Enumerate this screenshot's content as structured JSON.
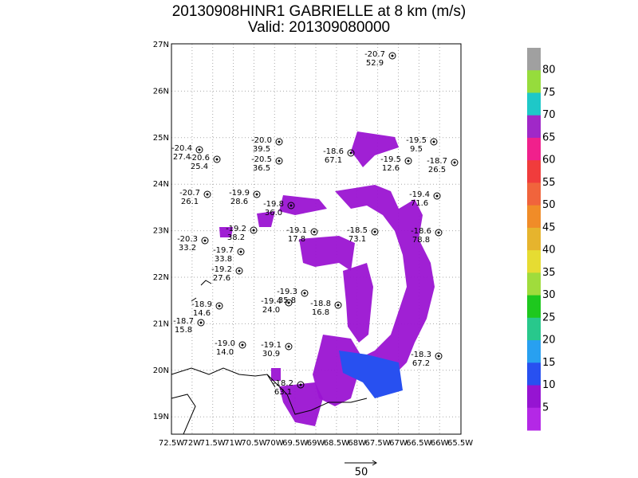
{
  "header": {
    "title": "20130908HINR1  GABRIELLE at 8 km (m/s)",
    "subtitle": "Valid: 201309080000"
  },
  "map": {
    "lat_labels": [
      "27N",
      "26N",
      "25N",
      "24N",
      "23N",
      "22N",
      "21N",
      "20N",
      "19N"
    ],
    "lon_labels": [
      "72.5W",
      "72W",
      "71.5W",
      "71W",
      "70.5W",
      "70W",
      "69.5W",
      "69W",
      "68.5W",
      "68W",
      "67.5W",
      "67W",
      "66.5W",
      "66W",
      "65.5W"
    ],
    "stations": [
      {
        "values": [
          "-20.7",
          "52.9"
        ]
      },
      {
        "values": [
          "-20.0",
          "39.5"
        ]
      },
      {
        "values": [
          "-20.5",
          "36.5"
        ]
      },
      {
        "values": [
          "-20.4",
          "27.4"
        ]
      },
      {
        "values": [
          "-20.6",
          "25.4"
        ]
      },
      {
        "values": [
          "-18.6",
          "67.1"
        ]
      },
      {
        "values": [
          "-19.5",
          "9.5"
        ]
      },
      {
        "values": [
          "-19.5",
          "12.6"
        ]
      },
      {
        "values": [
          "-18.7",
          "26.5"
        ]
      },
      {
        "values": [
          "-20.7",
          "26.1"
        ]
      },
      {
        "values": [
          "-19.9",
          "28.6"
        ]
      },
      {
        "values": [
          "-19.8",
          "36.0"
        ]
      },
      {
        "values": [
          "-19.4",
          "71.6"
        ]
      },
      {
        "values": [
          "-19.2",
          "38.2"
        ]
      },
      {
        "values": [
          "-19.1",
          "17.8"
        ]
      },
      {
        "values": [
          "-18.5",
          "73.1"
        ]
      },
      {
        "values": [
          "-18.6",
          "78.8"
        ]
      },
      {
        "values": [
          "-20.3",
          "33.2"
        ]
      },
      {
        "values": [
          "-19.7",
          "33.8"
        ]
      },
      {
        "values": [
          "-19.2",
          "27.6"
        ]
      },
      {
        "values": [
          "-18.9",
          "14.6"
        ]
      },
      {
        "values": [
          "-19.3",
          "35.8"
        ]
      },
      {
        "values": [
          "-19.4",
          "24.0"
        ]
      },
      {
        "values": [
          "-18.8",
          "16.8"
        ]
      },
      {
        "values": [
          "-18.7",
          "15.8"
        ]
      },
      {
        "values": [
          "-19.0",
          "14.0"
        ]
      },
      {
        "values": [
          "-18.3",
          "67.2"
        ]
      },
      {
        "values": [
          "-18.2",
          "63.1"
        ]
      },
      {
        "values": [
          "-19.1",
          "30.9"
        ]
      }
    ]
  },
  "colorbar": {
    "labels": [
      "80",
      "75",
      "70",
      "65",
      "60",
      "55",
      "50",
      "45",
      "40",
      "35",
      "30",
      "25",
      "20",
      "15",
      "10",
      "5"
    ],
    "colors": [
      "#a0a0a0",
      "#96dc3c",
      "#1ec8c8",
      "#a028c8",
      "#f0208c",
      "#f03c3c",
      "#f0643c",
      "#f08c28",
      "#e6b42d",
      "#e6dc32",
      "#a0dc3c",
      "#1ec81e",
      "#28c88c",
      "#28a0f0",
      "#2850f0",
      "#9614d2",
      "#b428e6"
    ]
  },
  "scale": {
    "label": "50"
  }
}
